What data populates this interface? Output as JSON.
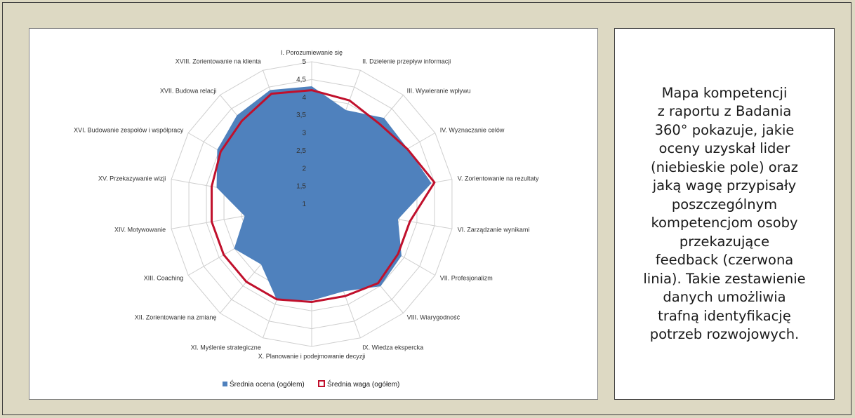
{
  "description": "Mapa kompetencji\nz raportu z Badania\n360° pokazuje, jakie\noceny uzyskał lider\n(niebieskie pole) oraz\njaką wagę przypisały\nposzczególnym\nkompetencjom  osoby\nprzekazujące\nfeedback (czerwona\nlinia). Takie zestawienie\ndanych umożliwia\ntrafną identyfikację\npotrzeb rozwojowych.",
  "chart_data": {
    "type": "radar",
    "categories": [
      "I. Porozumiewanie się",
      "II. Dzielenie przepływ informacji",
      "III. Wywieranie wpływu",
      "IV. Wyznaczanie celów",
      "V. Zorientowanie na rezultaty",
      "VI. Zarządzanie wynikami",
      "VII. Profesjonalizm",
      "VIII. Wiarygodność",
      "IX. Wiedza ekspercka",
      "X. Planowanie i podejmowanie decyzji",
      "XI. Myślenie strategiczne",
      "XII. Zorientowanie na zmianę",
      "XIII. Coaching",
      "XIV. Motywowanie",
      "XV. Przekazywanie wizji",
      "XVI. Budowanie zespołów i współpracy",
      "XVII. Budowa relacji",
      "XVIII. Zorientowanie na klienta"
    ],
    "series": [
      {
        "name": "Średnia ocena (ogółem)",
        "values": [
          4.3,
          3.8,
          4.15,
          4.1,
          4.4,
          3.45,
          3.9,
          4.0,
          3.6,
          3.7,
          3.85,
          3.2,
          3.5,
          2.9,
          3.7,
          4.05,
          4.25,
          4.4
        ],
        "color": "#4f81bd"
      },
      {
        "name": "Średnia waga (ogółem)",
        "values": [
          4.2,
          4.1,
          3.95,
          4.1,
          4.5,
          3.8,
          3.8,
          3.9,
          3.75,
          3.75,
          3.85,
          3.85,
          3.85,
          3.85,
          3.85,
          3.95,
          4.05,
          4.3
        ],
        "color": "#c0102c"
      }
    ],
    "rlim": [
      1,
      5
    ],
    "ticks": [
      "1",
      "1,5",
      "2",
      "2,5",
      "3",
      "3,5",
      "4",
      "4,5",
      "5"
    ],
    "legend": "bottom"
  }
}
